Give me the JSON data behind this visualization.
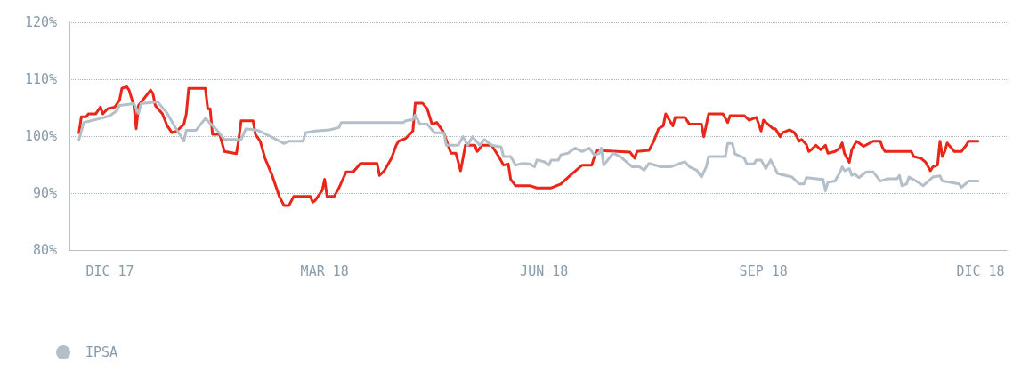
{
  "chart_data": {
    "type": "line",
    "xlim": [
      "2017-11-14",
      "2018-12-12"
    ],
    "ylim": [
      80,
      120
    ],
    "xticks": [
      {
        "value": "2017-12-01",
        "label": "DIC 17"
      },
      {
        "value": "2018-03-01",
        "label": "MAR 18"
      },
      {
        "value": "2018-06-01",
        "label": "JUN 18"
      },
      {
        "value": "2018-09-01",
        "label": "SEP 18"
      },
      {
        "value": "2018-12-01",
        "label": "DIC 18"
      }
    ],
    "yticks": [
      {
        "value": 80,
        "label": "80%"
      },
      {
        "value": 90,
        "label": "90%"
      },
      {
        "value": 100,
        "label": "100%"
      },
      {
        "value": 110,
        "label": "110%"
      },
      {
        "value": 120,
        "label": "120%"
      }
    ],
    "grid": "y",
    "legend": "bottom left",
    "marker": "none",
    "line_style": "solid",
    "series": [
      {
        "color": "#e8271b",
        "x": [
          "2017-11-18",
          "2017-11-19",
          "2017-11-21",
          "2017-11-22",
          "2017-11-25",
          "2017-11-27",
          "2017-11-28",
          "2017-11-30",
          "2017-12-03",
          "2017-12-05",
          "2017-12-06",
          "2017-12-08",
          "2017-12-09",
          "2017-12-11",
          "2017-12-12",
          "2017-12-13",
          "2017-12-16",
          "2017-12-18",
          "2017-12-19",
          "2017-12-20",
          "2017-12-23",
          "2017-12-25",
          "2017-12-27",
          "2017-12-29",
          "2018-01-01",
          "2018-01-02",
          "2018-01-03",
          "2018-01-10",
          "2018-01-11",
          "2018-01-12",
          "2018-01-13",
          "2018-01-16",
          "2018-01-18",
          "2018-01-23",
          "2018-01-24",
          "2018-01-25",
          "2018-01-30",
          "2018-01-31",
          "2018-02-02",
          "2018-02-04",
          "2018-02-07",
          "2018-02-10",
          "2018-02-12",
          "2018-02-14",
          "2018-02-16",
          "2018-02-23",
          "2018-02-24",
          "2018-02-25",
          "2018-02-28",
          "2018-03-01",
          "2018-03-02",
          "2018-03-05",
          "2018-03-07",
          "2018-03-10",
          "2018-03-13",
          "2018-03-16",
          "2018-03-23",
          "2018-03-24",
          "2018-03-26",
          "2018-03-29",
          "2018-03-31",
          "2018-04-01",
          "2018-04-04",
          "2018-04-07",
          "2018-04-08",
          "2018-04-11",
          "2018-04-13",
          "2018-04-15",
          "2018-04-17",
          "2018-04-20",
          "2018-04-22",
          "2018-04-23",
          "2018-04-25",
          "2018-04-27",
          "2018-04-28",
          "2018-04-29",
          "2018-05-03",
          "2018-05-04",
          "2018-05-06",
          "2018-05-10",
          "2018-05-13",
          "2018-05-15",
          "2018-05-17",
          "2018-05-18",
          "2018-05-20",
          "2018-05-26",
          "2018-05-29",
          "2018-06-04",
          "2018-06-08",
          "2018-06-12",
          "2018-06-17",
          "2018-06-21",
          "2018-06-23",
          "2018-07-07",
          "2018-07-09",
          "2018-07-10",
          "2018-07-15",
          "2018-07-17",
          "2018-07-19",
          "2018-07-21",
          "2018-07-22",
          "2018-07-25",
          "2018-07-26",
          "2018-07-30",
          "2018-08-01",
          "2018-08-06",
          "2018-08-07",
          "2018-08-09",
          "2018-08-15",
          "2018-08-17",
          "2018-08-18",
          "2018-08-24",
          "2018-08-26",
          "2018-08-29",
          "2018-08-30",
          "2018-08-31",
          "2018-09-01",
          "2018-09-05",
          "2018-09-06",
          "2018-09-08",
          "2018-09-09",
          "2018-09-12",
          "2018-09-14",
          "2018-09-16",
          "2018-09-17",
          "2018-09-19",
          "2018-09-20",
          "2018-09-21",
          "2018-09-23",
          "2018-09-25",
          "2018-09-27",
          "2018-09-28",
          "2018-10-01",
          "2018-10-03",
          "2018-10-04",
          "2018-10-05",
          "2018-10-07",
          "2018-10-08",
          "2018-10-10",
          "2018-10-13",
          "2018-10-17",
          "2018-10-20",
          "2018-10-21",
          "2018-10-22",
          "2018-11-02",
          "2018-11-03",
          "2018-11-06",
          "2018-11-08",
          "2018-11-10",
          "2018-11-11",
          "2018-11-13",
          "2018-11-14",
          "2018-11-15",
          "2018-11-16",
          "2018-11-17",
          "2018-11-20",
          "2018-11-23",
          "2018-11-25",
          "2018-11-26",
          "2018-11-30"
        ],
        "values": [
          100.6,
          103.4,
          103.4,
          103.9,
          103.9,
          105.1,
          103.9,
          104.8,
          105.1,
          106.3,
          108.4,
          108.7,
          108.1,
          105.4,
          101.3,
          105.4,
          107.0,
          108.1,
          107.5,
          105.4,
          103.9,
          101.8,
          100.6,
          100.9,
          102.1,
          103.9,
          108.4,
          108.4,
          104.8,
          104.8,
          100.3,
          100.3,
          97.3,
          96.9,
          99.4,
          102.7,
          102.7,
          100.3,
          99.1,
          96.1,
          93.1,
          89.4,
          87.8,
          87.8,
          89.4,
          89.4,
          88.4,
          88.7,
          90.5,
          92.4,
          89.4,
          89.4,
          90.9,
          93.7,
          93.7,
          95.2,
          95.2,
          93.1,
          93.9,
          96.1,
          98.4,
          99.1,
          99.6,
          100.9,
          105.8,
          105.8,
          104.8,
          102.1,
          102.4,
          100.6,
          98.1,
          97.0,
          97.0,
          93.9,
          96.1,
          98.4,
          98.4,
          97.3,
          98.4,
          98.4,
          96.4,
          94.9,
          95.1,
          92.4,
          91.3,
          91.3,
          90.9,
          90.9,
          91.6,
          93.1,
          94.9,
          94.9,
          97.5,
          97.2,
          96.1,
          97.3,
          97.5,
          99.1,
          101.3,
          101.8,
          103.9,
          101.8,
          103.3,
          103.3,
          102.1,
          102.1,
          99.9,
          103.9,
          103.9,
          102.4,
          103.6,
          103.6,
          102.8,
          103.3,
          102.1,
          100.9,
          102.8,
          101.3,
          101.3,
          99.9,
          100.6,
          101.1,
          100.6,
          99.1,
          99.4,
          98.5,
          97.3,
          97.6,
          98.4,
          97.6,
          98.4,
          97.0,
          97.3,
          97.9,
          98.8,
          96.9,
          95.4,
          97.6,
          99.1,
          98.2,
          99.1,
          99.1,
          97.9,
          97.3,
          97.3,
          96.4,
          96.1,
          95.4,
          93.9,
          94.6,
          94.9,
          99.1,
          96.4,
          97.3,
          98.8,
          97.3,
          97.3,
          98.4,
          99.1,
          99.1
        ]
      },
      {
        "name": "IPSA",
        "color": "#b4bfc9",
        "x": [
          "2017-11-18",
          "2017-11-20",
          "2017-11-23",
          "2017-11-27",
          "2017-12-01",
          "2017-12-04",
          "2017-12-05",
          "2017-12-11",
          "2017-12-13",
          "2017-12-14",
          "2017-12-21",
          "2017-12-25",
          "2017-12-28",
          "2018-01-01",
          "2018-01-02",
          "2018-01-06",
          "2018-01-10",
          "2018-01-15",
          "2018-01-18",
          "2018-01-25",
          "2018-01-27",
          "2018-02-01",
          "2018-02-06",
          "2018-02-12",
          "2018-02-14",
          "2018-02-20",
          "2018-02-21",
          "2018-02-25",
          "2018-03-03",
          "2018-03-07",
          "2018-03-08",
          "2018-04-03",
          "2018-04-04",
          "2018-04-07",
          "2018-04-08",
          "2018-04-10",
          "2018-04-13",
          "2018-04-16",
          "2018-04-20",
          "2018-04-21",
          "2018-04-26",
          "2018-04-28",
          "2018-04-30",
          "2018-05-02",
          "2018-05-05",
          "2018-05-07",
          "2018-05-10",
          "2018-05-14",
          "2018-05-15",
          "2018-05-18",
          "2018-05-20",
          "2018-05-23",
          "2018-05-26",
          "2018-05-28",
          "2018-05-29",
          "2018-06-01",
          "2018-06-03",
          "2018-06-04",
          "2018-06-07",
          "2018-06-08",
          "2018-06-11",
          "2018-06-14",
          "2018-06-17",
          "2018-06-20",
          "2018-06-22",
          "2018-06-24",
          "2018-06-25",
          "2018-06-26",
          "2018-06-30",
          "2018-07-03",
          "2018-07-08",
          "2018-07-11",
          "2018-07-13",
          "2018-07-15",
          "2018-07-20",
          "2018-07-24",
          "2018-07-28",
          "2018-07-30",
          "2018-08-01",
          "2018-08-04",
          "2018-08-06",
          "2018-08-08",
          "2018-08-09",
          "2018-08-16",
          "2018-08-17",
          "2018-08-19",
          "2018-08-20",
          "2018-08-24",
          "2018-08-25",
          "2018-08-28",
          "2018-08-29",
          "2018-08-31",
          "2018-09-02",
          "2018-09-04",
          "2018-09-07",
          "2018-09-13",
          "2018-09-16",
          "2018-09-18",
          "2018-09-19",
          "2018-09-26",
          "2018-09-27",
          "2018-09-28",
          "2018-10-01",
          "2018-10-03",
          "2018-10-04",
          "2018-10-05",
          "2018-10-07",
          "2018-10-08",
          "2018-10-09",
          "2018-10-11",
          "2018-10-14",
          "2018-10-17",
          "2018-10-20",
          "2018-10-23",
          "2018-10-27",
          "2018-10-28",
          "2018-10-29",
          "2018-10-31",
          "2018-11-01",
          "2018-11-04",
          "2018-11-07",
          "2018-11-11",
          "2018-11-14",
          "2018-11-15",
          "2018-11-18",
          "2018-11-22",
          "2018-11-23",
          "2018-11-26",
          "2018-11-30"
        ],
        "values": [
          99.4,
          102.4,
          102.7,
          103.1,
          103.6,
          104.5,
          105.4,
          105.7,
          104.0,
          105.7,
          106.0,
          104.0,
          101.8,
          99.1,
          101.0,
          101.0,
          103.1,
          101.0,
          99.4,
          99.4,
          101.3,
          101.0,
          100.0,
          98.7,
          99.1,
          99.1,
          100.6,
          100.9,
          101.1,
          101.5,
          102.4,
          102.4,
          102.7,
          102.9,
          103.7,
          102.1,
          102.1,
          100.6,
          100.6,
          98.4,
          98.4,
          99.9,
          98.4,
          99.9,
          98.4,
          99.4,
          98.4,
          98.1,
          96.4,
          96.4,
          94.9,
          95.2,
          95.1,
          94.6,
          95.8,
          95.5,
          94.9,
          95.8,
          95.8,
          96.7,
          97.0,
          97.9,
          97.3,
          97.9,
          96.7,
          96.9,
          97.9,
          94.9,
          97.0,
          96.4,
          94.6,
          94.6,
          94.0,
          95.2,
          94.6,
          94.6,
          95.2,
          95.5,
          94.6,
          94.0,
          92.8,
          94.6,
          96.4,
          96.4,
          98.7,
          98.7,
          96.9,
          96.1,
          95.1,
          95.1,
          95.8,
          95.8,
          94.3,
          95.8,
          93.4,
          92.8,
          91.6,
          91.6,
          92.7,
          92.4,
          90.4,
          91.9,
          92.1,
          93.6,
          94.6,
          93.9,
          94.3,
          93.1,
          93.4,
          92.7,
          93.7,
          93.7,
          92.1,
          92.5,
          92.5,
          93.1,
          91.3,
          91.6,
          92.8,
          92.1,
          91.3,
          92.8,
          93.0,
          92.1,
          91.9,
          91.6,
          91.0,
          92.1,
          92.1
        ]
      }
    ]
  }
}
